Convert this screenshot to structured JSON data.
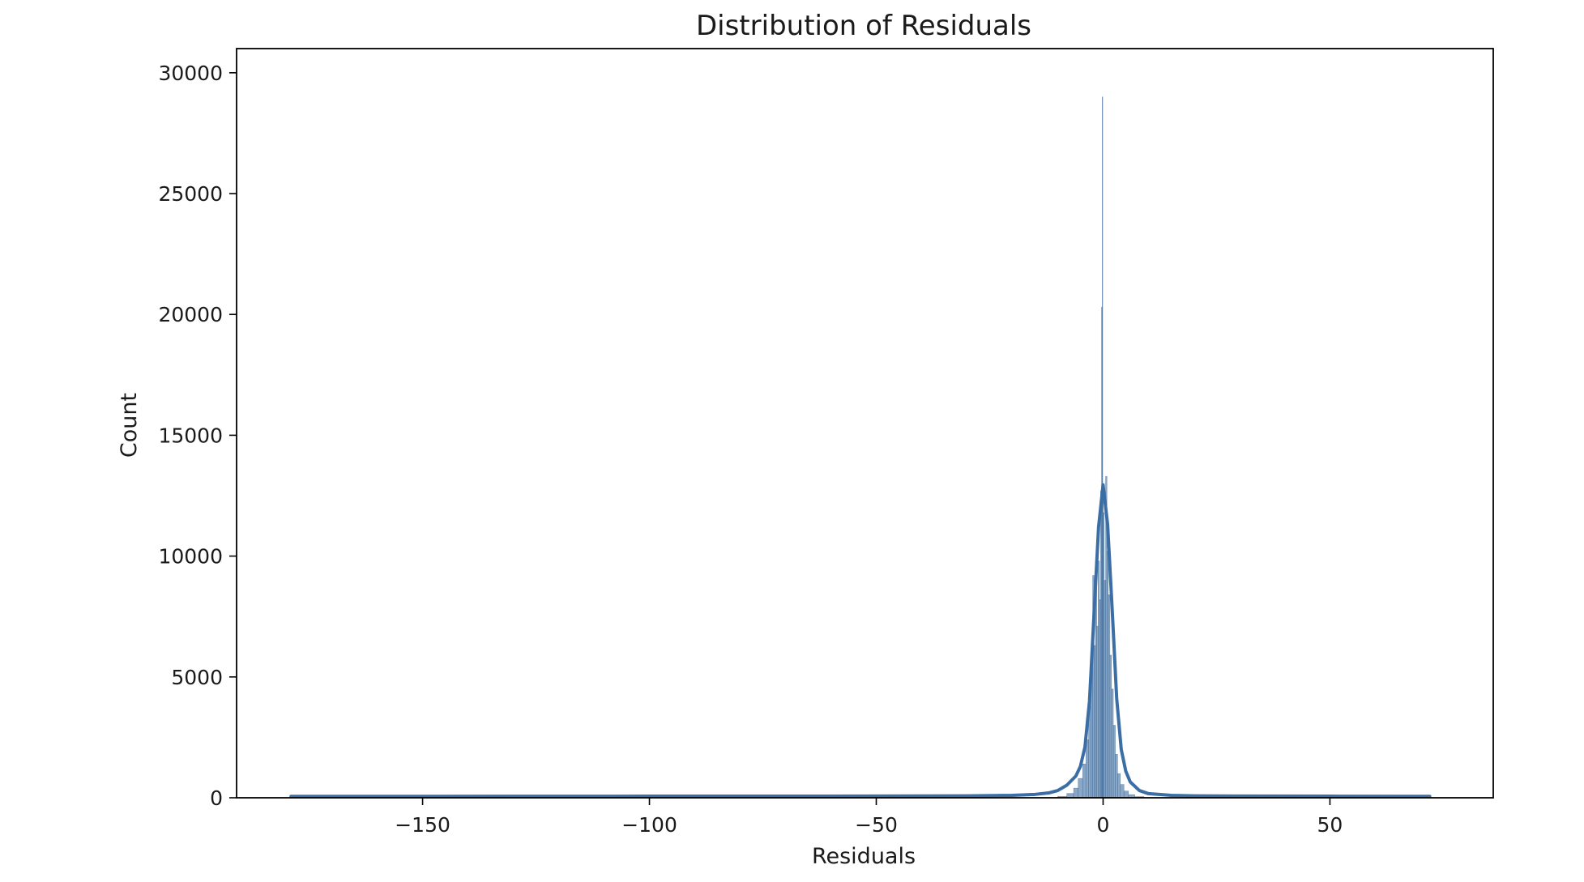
{
  "chart_data": {
    "type": "bar",
    "title": "Distribution of Residuals",
    "xlabel": "Residuals",
    "ylabel": "Count",
    "xlim": [
      -191,
      86
    ],
    "ylim": [
      0,
      31000
    ],
    "xticks": [
      -150,
      -100,
      -50,
      0,
      50
    ],
    "xtick_labels": [
      "−150",
      "−100",
      "−50",
      "0",
      "50"
    ],
    "yticks": [
      0,
      5000,
      10000,
      15000,
      20000,
      25000,
      30000
    ],
    "ytick_labels": [
      "0",
      "5000",
      "10000",
      "15000",
      "20000",
      "25000",
      "30000"
    ],
    "grid": false,
    "colors": {
      "bar_fill": "#4c78a8",
      "bar_edge": "#3d6a9a",
      "kde_line": "#3a6ea5"
    },
    "histogram_bins": [
      {
        "x0": -10.0,
        "x1": -8.0,
        "count": 60
      },
      {
        "x0": -8.0,
        "x1": -6.5,
        "count": 180
      },
      {
        "x0": -6.5,
        "x1": -5.5,
        "count": 400
      },
      {
        "x0": -5.5,
        "x1": -4.5,
        "count": 800
      },
      {
        "x0": -4.5,
        "x1": -3.8,
        "count": 1400
      },
      {
        "x0": -3.8,
        "x1": -3.2,
        "count": 2400
      },
      {
        "x0": -3.2,
        "x1": -2.7,
        "count": 3800
      },
      {
        "x0": -2.7,
        "x1": -2.3,
        "count": 5300
      },
      {
        "x0": -2.3,
        "x1": -2.0,
        "count": 9200
      },
      {
        "x0": -2.0,
        "x1": -1.7,
        "count": 6300
      },
      {
        "x0": -1.7,
        "x1": -1.4,
        "count": 9400
      },
      {
        "x0": -1.4,
        "x1": -1.1,
        "count": 7100
      },
      {
        "x0": -1.1,
        "x1": -0.8,
        "count": 9800
      },
      {
        "x0": -0.8,
        "x1": -0.55,
        "count": 8200
      },
      {
        "x0": -0.55,
        "x1": -0.35,
        "count": 12700
      },
      {
        "x0": -0.35,
        "x1": -0.2,
        "count": 20300
      },
      {
        "x0": -0.2,
        "x1": -0.08,
        "count": 29000
      },
      {
        "x0": -0.08,
        "x1": 0.05,
        "count": 12400
      },
      {
        "x0": 0.05,
        "x1": 0.25,
        "count": 11800
      },
      {
        "x0": 0.25,
        "x1": 0.55,
        "count": 9000
      },
      {
        "x0": 0.55,
        "x1": 0.85,
        "count": 13300
      },
      {
        "x0": 0.85,
        "x1": 1.15,
        "count": 10200
      },
      {
        "x0": 1.15,
        "x1": 1.5,
        "count": 8400
      },
      {
        "x0": 1.5,
        "x1": 1.85,
        "count": 5900
      },
      {
        "x0": 1.85,
        "x1": 2.25,
        "count": 4500
      },
      {
        "x0": 2.25,
        "x1": 2.7,
        "count": 3000
      },
      {
        "x0": 2.7,
        "x1": 3.2,
        "count": 1800
      },
      {
        "x0": 3.2,
        "x1": 3.8,
        "count": 1000
      },
      {
        "x0": 3.8,
        "x1": 4.6,
        "count": 550
      },
      {
        "x0": 4.6,
        "x1": 5.6,
        "count": 280
      },
      {
        "x0": 5.6,
        "x1": 7.0,
        "count": 130
      },
      {
        "x0": 7.0,
        "x1": 9.0,
        "count": 50
      }
    ],
    "kde_line": {
      "x": [
        -179,
        -150,
        -100,
        -50,
        -30,
        -20,
        -15,
        -12,
        -10,
        -8,
        -6,
        -5,
        -4,
        -3,
        -2,
        -1,
        0,
        1,
        2,
        3,
        4,
        5,
        6,
        8,
        10,
        15,
        20,
        30,
        50,
        72
      ],
      "y": [
        60,
        60,
        65,
        70,
        80,
        100,
        140,
        200,
        300,
        520,
        900,
        1300,
        2100,
        4000,
        7600,
        11200,
        12950,
        11300,
        7800,
        4100,
        2000,
        1100,
        650,
        300,
        170,
        100,
        80,
        70,
        65,
        60
      ]
    }
  }
}
